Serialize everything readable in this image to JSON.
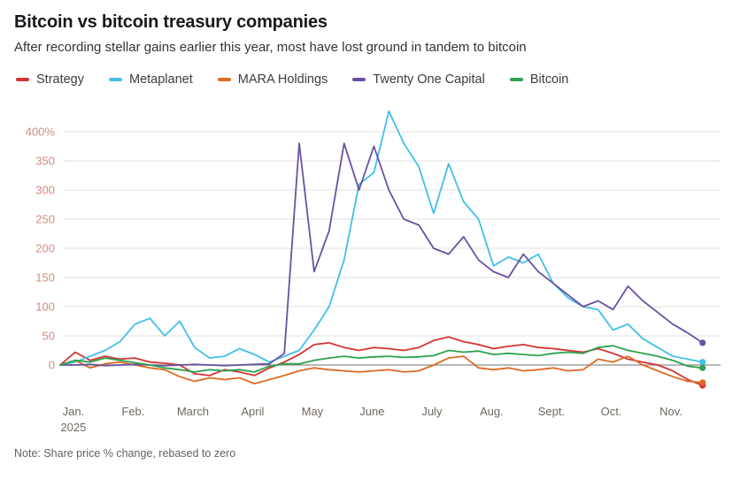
{
  "note": "Note: Share price % change, rebased to zero",
  "chart_data": {
    "type": "line",
    "title": "Bitcoin vs bitcoin treasury companies",
    "subtitle": "After recording stellar gains earlier this year, most have lost ground in tandem to bitcoin",
    "x_unit": "months since Jan 2025",
    "xlim": [
      0,
      11.05
    ],
    "ylim": [
      -50,
      450
    ],
    "grid": "horizontal",
    "legend_position": "top",
    "x_tick_labels": [
      "Jan.",
      "Feb.",
      "March",
      "April",
      "May",
      "June",
      "July",
      "Aug.",
      "Sept.",
      "Oct.",
      "Nov."
    ],
    "x_tick_sublabels": [
      "2025",
      "",
      "",
      "",
      "",
      "",
      "",
      "",
      "",
      "",
      ""
    ],
    "y_ticks": [
      0,
      50,
      100,
      150,
      200,
      250,
      300,
      350,
      400
    ],
    "y_tick_labels": [
      "0",
      "50",
      "100",
      "150",
      "200",
      "250",
      "300",
      "350",
      "400%"
    ],
    "style": {
      "y_label_color": "#cf8d82",
      "x_label_color": "#6e675f",
      "grid_color": "#e4e2e0",
      "zero_line_color": "#8d8d8d"
    },
    "x": [
      0,
      0.25,
      0.5,
      0.75,
      1,
      1.25,
      1.5,
      1.75,
      2,
      2.25,
      2.5,
      2.75,
      3,
      3.25,
      3.5,
      3.75,
      4,
      4.25,
      4.5,
      4.75,
      5,
      5.25,
      5.5,
      5.75,
      6,
      6.25,
      6.5,
      6.75,
      7,
      7.25,
      7.5,
      7.75,
      8,
      8.25,
      8.5,
      8.75,
      9,
      9.25,
      9.5,
      9.75,
      10,
      10.25,
      10.5,
      10.75
    ],
    "series": [
      {
        "name": "Strategy",
        "color": "#d13532",
        "values": [
          0,
          22,
          8,
          15,
          10,
          12,
          5,
          3,
          0,
          -15,
          -18,
          -8,
          -12,
          -18,
          -5,
          5,
          18,
          35,
          38,
          30,
          25,
          30,
          28,
          25,
          30,
          42,
          48,
          40,
          35,
          28,
          32,
          35,
          30,
          28,
          25,
          22,
          28,
          20,
          10,
          5,
          0,
          -10,
          -25,
          -35
        ]
      },
      {
        "name": "Metaplanet",
        "color": "#41c0e8",
        "values": [
          0,
          5,
          15,
          25,
          40,
          70,
          80,
          50,
          75,
          30,
          12,
          15,
          28,
          18,
          5,
          15,
          25,
          60,
          100,
          180,
          310,
          330,
          435,
          380,
          340,
          260,
          345,
          280,
          250,
          170,
          185,
          175,
          190,
          140,
          115,
          100,
          95,
          60,
          70,
          45,
          30,
          15,
          10,
          5
        ]
      },
      {
        "name": "MARA Holdings",
        "color": "#dd6b24",
        "values": [
          0,
          8,
          -5,
          2,
          5,
          0,
          -5,
          -8,
          -20,
          -28,
          -22,
          -25,
          -22,
          -32,
          -25,
          -18,
          -10,
          -5,
          -8,
          -10,
          -12,
          -10,
          -8,
          -12,
          -10,
          0,
          12,
          15,
          -5,
          -8,
          -5,
          -10,
          -8,
          -5,
          -10,
          -8,
          10,
          5,
          15,
          0,
          -10,
          -20,
          -28,
          -30
        ]
      },
      {
        "name": "Twenty One Capital",
        "color": "#6a51a1",
        "values": [
          0,
          0,
          1,
          -1,
          0,
          1,
          0,
          -1,
          0,
          1,
          0,
          -1,
          0,
          1,
          2,
          20,
          380,
          160,
          230,
          380,
          300,
          375,
          300,
          250,
          240,
          200,
          190,
          220,
          180,
          160,
          150,
          190,
          160,
          140,
          120,
          100,
          110,
          95,
          135,
          110,
          90,
          70,
          55,
          38
        ]
      },
      {
        "name": "Bitcoin",
        "color": "#2fa14f",
        "values": [
          0,
          8,
          5,
          12,
          8,
          4,
          0,
          -5,
          -8,
          -12,
          -8,
          -10,
          -8,
          -12,
          -2,
          2,
          2,
          8,
          12,
          15,
          12,
          14,
          15,
          13,
          14,
          16,
          25,
          22,
          24,
          18,
          20,
          18,
          16,
          20,
          22,
          20,
          30,
          33,
          25,
          20,
          15,
          8,
          -2,
          -5
        ]
      }
    ]
  }
}
